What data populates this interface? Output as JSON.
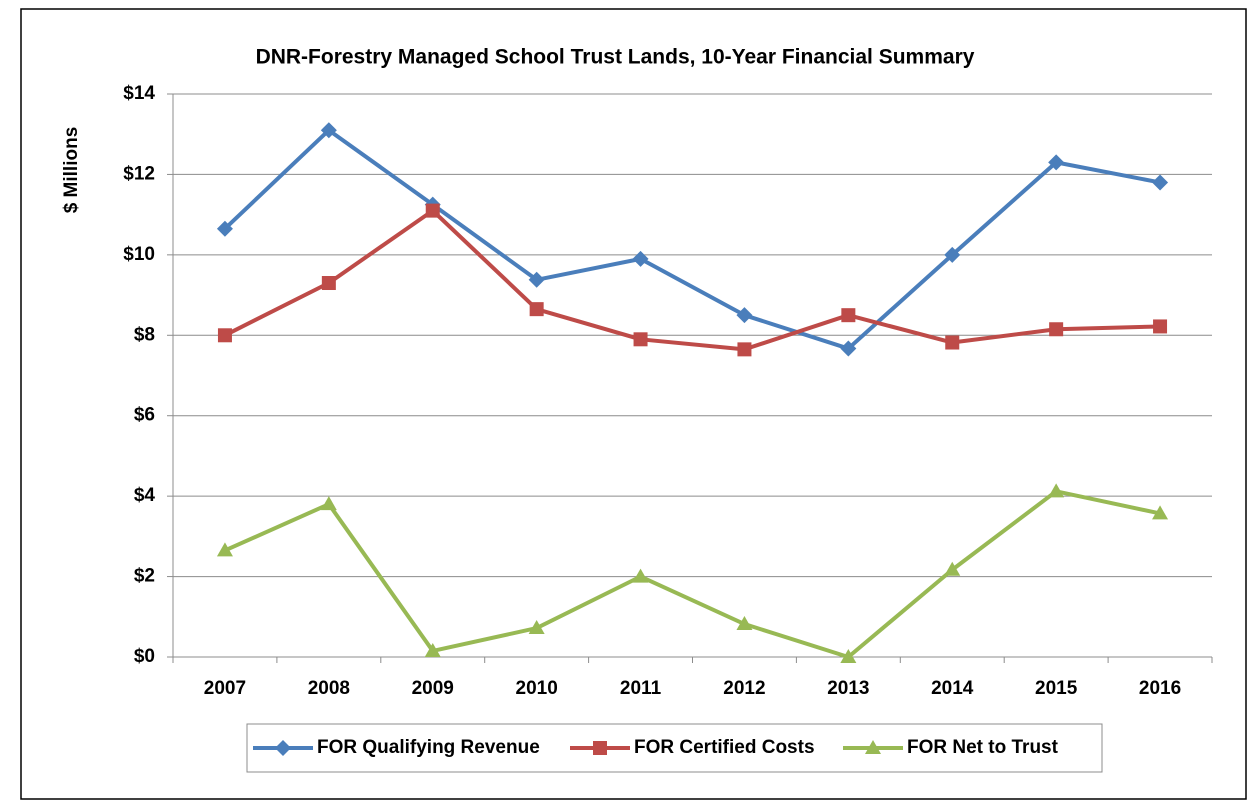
{
  "chart_data": {
    "type": "line",
    "title": "DNR-Forestry Managed School Trust Lands, 10-Year Financial Summary",
    "y_label": "$ Millions",
    "categories": [
      "2007",
      "2008",
      "2009",
      "2010",
      "2011",
      "2012",
      "2013",
      "2014",
      "2015",
      "2016"
    ],
    "series": [
      {
        "name": "FOR Qualifying Revenue",
        "color": "#4a7ebb",
        "marker": "diamond",
        "values": [
          10.65,
          13.1,
          11.25,
          9.38,
          9.9,
          8.5,
          7.67,
          10.0,
          12.3,
          11.8
        ]
      },
      {
        "name": "FOR Certified Costs",
        "color": "#be4b48",
        "marker": "square",
        "values": [
          8.0,
          9.3,
          11.1,
          8.65,
          7.9,
          7.65,
          8.5,
          7.82,
          8.15,
          8.22
        ]
      },
      {
        "name": "FOR Net  to Trust",
        "color": "#98b954",
        "marker": "triangle",
        "values": [
          2.65,
          3.8,
          0.15,
          0.72,
          2.0,
          0.82,
          0.0,
          2.17,
          4.12,
          3.57
        ]
      }
    ],
    "ylim": [
      0,
      14
    ],
    "yticks": [
      {
        "value": 0,
        "label": "$0"
      },
      {
        "value": 2,
        "label": "$2"
      },
      {
        "value": 4,
        "label": "$4"
      },
      {
        "value": 6,
        "label": "$6"
      },
      {
        "value": 8,
        "label": "$8"
      },
      {
        "value": 10,
        "label": "$10"
      },
      {
        "value": 12,
        "label": "$12"
      },
      {
        "value": 14,
        "label": "$14"
      }
    ],
    "grid": true,
    "legend": "bottom"
  }
}
